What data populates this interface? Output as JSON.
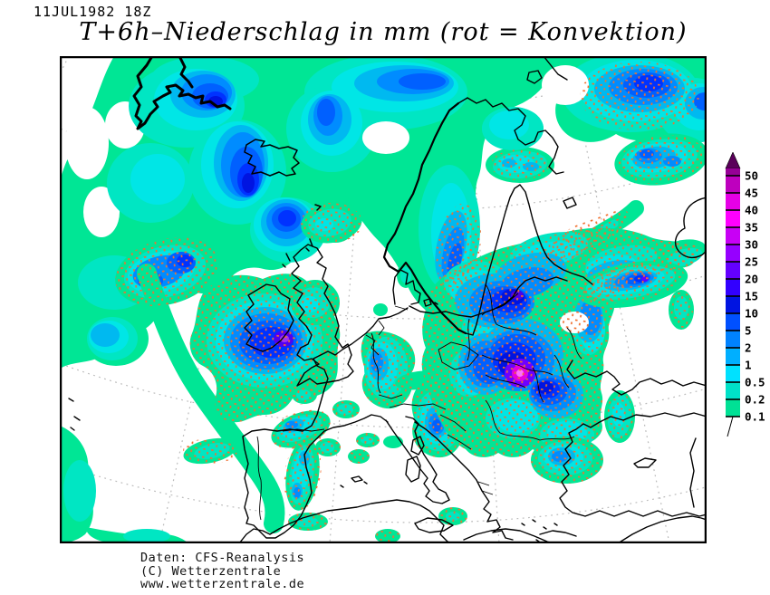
{
  "header": {
    "datetime": "11JUL1982 18Z",
    "title": "T+6h–Niederschlag in mm  (rot = Konvektion)"
  },
  "legend": {
    "unit": "mm",
    "arrow_color": "#5A005A",
    "ticks": [
      {
        "label": "50",
        "color": "#960096"
      },
      {
        "label": "45",
        "color": "#BE00BE"
      },
      {
        "label": "40",
        "color": "#E600E6"
      },
      {
        "label": "35",
        "color": "#FF00FF"
      },
      {
        "label": "30",
        "color": "#C800F5"
      },
      {
        "label": "25",
        "color": "#9600FF"
      },
      {
        "label": "20",
        "color": "#6400FF"
      },
      {
        "label": "15",
        "color": "#3200FF"
      },
      {
        "label": "10",
        "color": "#0014E1"
      },
      {
        "label": "5",
        "color": "#0050FF"
      },
      {
        "label": "2",
        "color": "#0082FF"
      },
      {
        "label": "1",
        "color": "#00AFFF"
      },
      {
        "label": "0.5",
        "color": "#00E1FF"
      },
      {
        "label": "0.2",
        "color": "#00E1C8"
      },
      {
        "label": "0.1",
        "color": "#00E195"
      }
    ]
  },
  "map": {
    "region": "Europe and North Atlantic",
    "colors": {
      "background": "#FFFFFF",
      "coastline": "#000000",
      "graticule": "#BBBBBB",
      "convection_stipple": "#F07030"
    }
  },
  "footer": {
    "lines": [
      "Daten: CFS-Reanalysis",
      "(C) Wetterzentrale",
      "www.wetterzentrale.de"
    ]
  }
}
